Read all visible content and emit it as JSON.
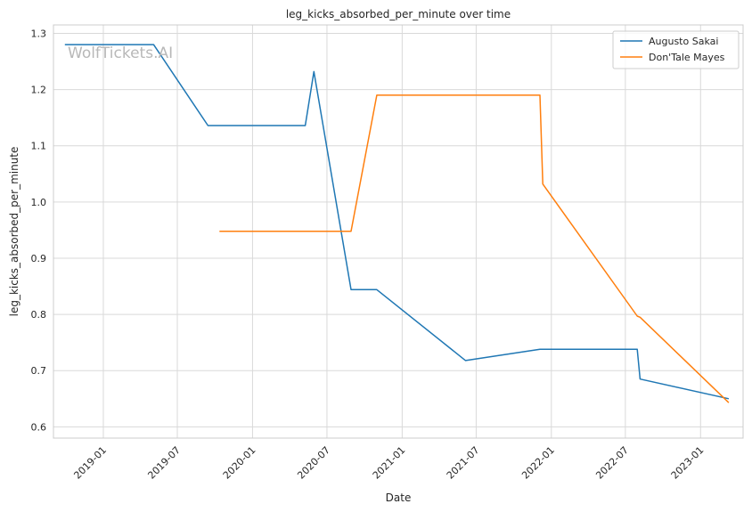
{
  "chart_data": {
    "type": "line",
    "title": "leg_kicks_absorbed_per_minute over time",
    "xlabel": "Date",
    "ylabel": "leg_kicks_absorbed_per_minute",
    "watermark": "WolfTickets.AI",
    "x_ticks": [
      "2019-01",
      "2019-07",
      "2020-01",
      "2020-07",
      "2021-01",
      "2021-07",
      "2022-01",
      "2022-07",
      "2023-01"
    ],
    "y_ticks": [
      "0.6",
      "0.7",
      "0.8",
      "0.9",
      "1.0",
      "1.1",
      "1.2",
      "1.3"
    ],
    "xlim": [
      "2018-09-01",
      "2023-04-15"
    ],
    "ylim": [
      0.58,
      1.315
    ],
    "grid": true,
    "legend": "top-right",
    "series": [
      {
        "name": "Augusto Sakai",
        "color": "#1f77b4",
        "x": [
          "2018-09-29",
          "2019-05-04",
          "2019-09-14",
          "2020-05-09",
          "2020-05-30",
          "2020-08-29",
          "2020-10-31",
          "2021-06-05",
          "2021-12-04",
          "2022-07-30",
          "2022-08-06",
          "2023-03-11"
        ],
        "y": [
          1.28,
          1.28,
          1.136,
          1.136,
          1.232,
          0.844,
          0.844,
          0.718,
          0.738,
          0.738,
          0.685,
          0.65
        ]
      },
      {
        "name": "Don'Tale Mayes",
        "color": "#ff7f0e",
        "x": [
          "2019-10-12",
          "2020-08-29",
          "2020-10-31",
          "2021-12-04",
          "2021-12-11",
          "2022-07-30",
          "2022-08-06",
          "2023-03-11"
        ],
        "y": [
          0.948,
          0.948,
          1.19,
          1.19,
          1.032,
          0.797,
          0.795,
          0.643
        ]
      }
    ]
  }
}
